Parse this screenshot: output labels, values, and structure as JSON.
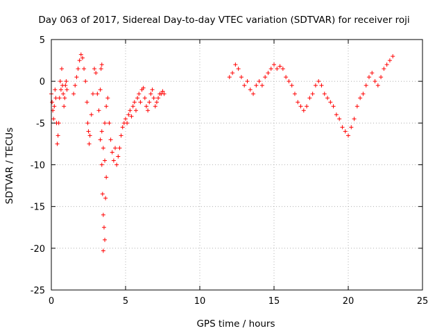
{
  "chart_data": {
    "type": "scatter",
    "title": "Day 063 of 2017, Sidereal Day-to-day VTEC variation (SDTVAR) for receiver roji",
    "xlabel": "GPS time / hours",
    "ylabel": "SDTVAR / TECUs",
    "xlim": [
      0,
      25
    ],
    "ylim": [
      -25,
      5
    ],
    "xticks": [
      0,
      5,
      10,
      15,
      20,
      25
    ],
    "yticks": [
      -25,
      -20,
      -15,
      -10,
      -5,
      0,
      5
    ],
    "grid": true,
    "marker": "+",
    "color": "#ff0000",
    "series": [
      {
        "name": "SDTVAR",
        "points": [
          [
            0.0,
            -1.5
          ],
          [
            0.05,
            -2.5
          ],
          [
            0.1,
            -3.5
          ],
          [
            0.15,
            -4.5
          ],
          [
            0.2,
            -3.0
          ],
          [
            0.25,
            -1.0
          ],
          [
            0.3,
            -2.0
          ],
          [
            0.35,
            -5.0
          ],
          [
            0.4,
            -7.5
          ],
          [
            0.45,
            -6.5
          ],
          [
            0.5,
            -5.0
          ],
          [
            0.55,
            -2.0
          ],
          [
            0.6,
            0.0
          ],
          [
            0.65,
            -1.0
          ],
          [
            0.7,
            1.5
          ],
          [
            0.75,
            -0.5
          ],
          [
            0.8,
            -1.5
          ],
          [
            0.85,
            -3.0
          ],
          [
            0.9,
            -2.0
          ],
          [
            0.95,
            -0.5
          ],
          [
            1.0,
            0.0
          ],
          [
            1.05,
            -1.0
          ],
          [
            1.5,
            -1.5
          ],
          [
            1.6,
            -0.5
          ],
          [
            1.7,
            0.5
          ],
          [
            1.8,
            1.5
          ],
          [
            1.9,
            2.5
          ],
          [
            2.0,
            3.2
          ],
          [
            2.1,
            2.8
          ],
          [
            2.2,
            1.5
          ],
          [
            2.3,
            0.0
          ],
          [
            2.4,
            -2.5
          ],
          [
            2.45,
            -5.0
          ],
          [
            2.5,
            -6.0
          ],
          [
            2.55,
            -7.5
          ],
          [
            2.6,
            -6.5
          ],
          [
            2.7,
            -4.0
          ],
          [
            2.8,
            -1.5
          ],
          [
            2.9,
            1.5
          ],
          [
            3.0,
            1.0
          ],
          [
            3.1,
            -1.5
          ],
          [
            3.2,
            -3.5
          ],
          [
            3.3,
            -7.0
          ],
          [
            3.4,
            -10.0
          ],
          [
            3.45,
            -13.5
          ],
          [
            3.5,
            -16.0
          ],
          [
            3.55,
            -17.5
          ],
          [
            3.6,
            -19.0
          ],
          [
            3.5,
            -20.3
          ],
          [
            3.65,
            -14.0
          ],
          [
            3.7,
            -11.5
          ],
          [
            3.6,
            -9.5
          ],
          [
            3.5,
            -8.0
          ],
          [
            3.4,
            -6.0
          ],
          [
            3.3,
            -1.0
          ],
          [
            3.35,
            1.5
          ],
          [
            3.4,
            2.0
          ],
          [
            3.6,
            -5.0
          ],
          [
            3.7,
            -3.0
          ],
          [
            3.8,
            -2.0
          ],
          [
            3.9,
            -5.0
          ],
          [
            4.0,
            -7.0
          ],
          [
            4.1,
            -8.5
          ],
          [
            4.2,
            -9.5
          ],
          [
            4.3,
            -8.0
          ],
          [
            4.4,
            -10.0
          ],
          [
            4.5,
            -9.0
          ],
          [
            4.6,
            -8.0
          ],
          [
            4.7,
            -6.5
          ],
          [
            4.8,
            -5.5
          ],
          [
            4.9,
            -5.0
          ],
          [
            5.0,
            -4.5
          ],
          [
            5.1,
            -5.0
          ],
          [
            5.2,
            -4.0
          ],
          [
            5.3,
            -3.5
          ],
          [
            5.4,
            -4.2
          ],
          [
            5.5,
            -3.0
          ],
          [
            5.6,
            -2.5
          ],
          [
            5.7,
            -3.5
          ],
          [
            5.8,
            -2.0
          ],
          [
            5.9,
            -1.5
          ],
          [
            6.0,
            -2.5
          ],
          [
            6.1,
            -1.0
          ],
          [
            6.2,
            -0.8
          ],
          [
            6.3,
            -2.0
          ],
          [
            6.4,
            -3.0
          ],
          [
            6.5,
            -3.5
          ],
          [
            6.6,
            -2.5
          ],
          [
            6.7,
            -1.5
          ],
          [
            6.8,
            -1.0
          ],
          [
            6.9,
            -2.0
          ],
          [
            7.0,
            -3.0
          ],
          [
            7.1,
            -2.5
          ],
          [
            7.2,
            -2.0
          ],
          [
            7.3,
            -1.5
          ],
          [
            7.4,
            -1.5
          ],
          [
            7.5,
            -1.2
          ],
          [
            7.6,
            -1.5
          ],
          [
            12.0,
            0.5
          ],
          [
            12.2,
            1.0
          ],
          [
            12.4,
            2.0
          ],
          [
            12.6,
            1.5
          ],
          [
            12.8,
            0.5
          ],
          [
            13.0,
            -0.5
          ],
          [
            13.2,
            0.0
          ],
          [
            13.4,
            -1.0
          ],
          [
            13.6,
            -1.5
          ],
          [
            13.8,
            -0.5
          ],
          [
            14.0,
            0.0
          ],
          [
            14.2,
            -0.5
          ],
          [
            14.4,
            0.5
          ],
          [
            14.6,
            1.0
          ],
          [
            14.8,
            1.5
          ],
          [
            15.0,
            2.0
          ],
          [
            15.2,
            1.5
          ],
          [
            15.4,
            1.8
          ],
          [
            15.6,
            1.5
          ],
          [
            15.8,
            0.5
          ],
          [
            16.0,
            0.0
          ],
          [
            16.2,
            -0.5
          ],
          [
            16.4,
            -1.5
          ],
          [
            16.6,
            -2.5
          ],
          [
            16.8,
            -3.0
          ],
          [
            17.0,
            -3.5
          ],
          [
            17.2,
            -3.0
          ],
          [
            17.4,
            -2.0
          ],
          [
            17.6,
            -1.5
          ],
          [
            17.8,
            -0.5
          ],
          [
            18.0,
            0.0
          ],
          [
            18.2,
            -0.5
          ],
          [
            18.4,
            -1.5
          ],
          [
            18.6,
            -2.0
          ],
          [
            18.8,
            -2.5
          ],
          [
            19.0,
            -3.0
          ],
          [
            19.2,
            -4.0
          ],
          [
            19.4,
            -4.5
          ],
          [
            19.6,
            -5.5
          ],
          [
            19.8,
            -6.0
          ],
          [
            20.0,
            -6.5
          ],
          [
            20.2,
            -5.5
          ],
          [
            20.4,
            -4.5
          ],
          [
            20.6,
            -3.0
          ],
          [
            20.8,
            -2.0
          ],
          [
            21.0,
            -1.5
          ],
          [
            21.2,
            -0.5
          ],
          [
            21.4,
            0.5
          ],
          [
            21.6,
            1.0
          ],
          [
            21.8,
            0.0
          ],
          [
            22.0,
            -0.5
          ],
          [
            22.2,
            0.5
          ],
          [
            22.4,
            1.5
          ],
          [
            22.6,
            2.0
          ],
          [
            22.8,
            2.5
          ],
          [
            23.0,
            3.0
          ]
        ]
      }
    ]
  }
}
